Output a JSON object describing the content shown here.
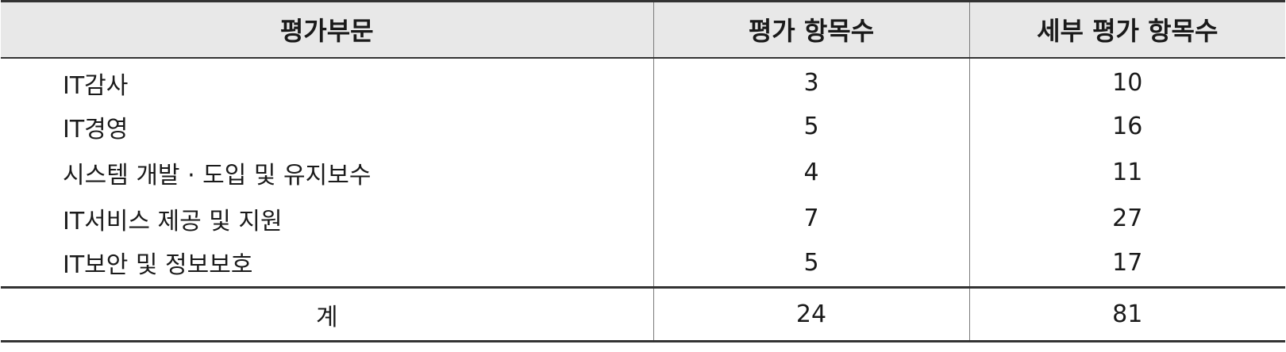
{
  "table": {
    "headers": [
      "평가부문",
      "평가 항목수",
      "세부 평가 항목수"
    ],
    "rows": [
      {
        "section": "IT감사",
        "items": "3",
        "detail_items": "10"
      },
      {
        "section": "IT경영",
        "items": "5",
        "detail_items": "16"
      },
      {
        "section": "시스템 개발 · 도입 및 유지보수",
        "items": "4",
        "detail_items": "11"
      },
      {
        "section": "IT서비스 제공 및 지원",
        "items": "7",
        "detail_items": "27"
      },
      {
        "section": "IT보안 및 정보보호",
        "items": "5",
        "detail_items": "17"
      }
    ],
    "total": {
      "label": "계",
      "items": "24",
      "detail_items": "81"
    }
  }
}
